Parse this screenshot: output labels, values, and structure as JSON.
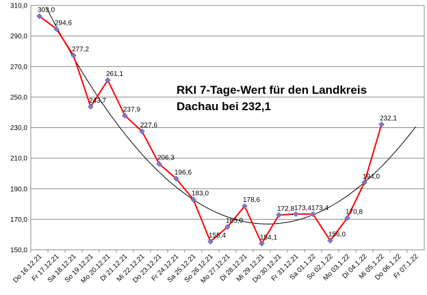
{
  "chart_data": {
    "type": "line",
    "annotation": [
      "RKI  7-Tage-Wert  für den Landkreis",
      "Dachau bei 232,1"
    ],
    "categories": [
      "Do 16.12.21",
      "Fr 17.12.21",
      "Sa 18.12.21",
      "So 19.12.21",
      "Mo 20.12.21",
      "Di 21.12.21",
      "Mi 22.12.21",
      "Do 23.12.21",
      "Fr 24.12.21",
      "Sa 25.12.21",
      "So 26.12.21",
      "Mo 27.12.21",
      "Di 28.12.21",
      "Mi 29.12.21",
      "Do 30.12.21",
      "Fr 31.12.21",
      "Sa 01.1.22",
      "So 02.1.22",
      "Mo 03.1.22",
      "Di 04.1.22",
      "Mi 05.1.22",
      "Do 06.1.22",
      "Fr 07.1.22"
    ],
    "series": [
      {
        "color": "#ff0000",
        "marker_color": "#7b78c8",
        "values": [
          303.0,
          294.6,
          277.2,
          243.7,
          261.1,
          237.9,
          227.6,
          206.3,
          196.6,
          183.0,
          155.4,
          165.0,
          178.6,
          154.1,
          172.8,
          173.4,
          173.4,
          156.0,
          170.8,
          194.0,
          232.1,
          null,
          null
        ],
        "value_labels": [
          "303,0",
          "294,6",
          "277,2",
          "243,7",
          "261,1",
          "237,9",
          "227,6",
          "206,3",
          "196,6",
          "183,0",
          "155,4",
          "165,0",
          "178,6",
          "154,1",
          "172,8",
          "173,4",
          "173,4",
          "156,0",
          "170,8",
          "194,0",
          "232,1",
          null,
          null
        ]
      }
    ],
    "trendline": true,
    "ylim": [
      150,
      310
    ],
    "yticks": [
      {
        "value": 150,
        "label": "150,0"
      },
      {
        "value": 170,
        "label": "170,0"
      },
      {
        "value": 190,
        "label": "190,0"
      },
      {
        "value": 210,
        "label": "210,0"
      },
      {
        "value": 230,
        "label": "230,0"
      },
      {
        "value": 250,
        "label": "250,0"
      },
      {
        "value": 270,
        "label": "270,0"
      },
      {
        "value": 290,
        "label": "290,0"
      },
      {
        "value": 310,
        "label": "310,0"
      }
    ],
    "grid": true
  }
}
